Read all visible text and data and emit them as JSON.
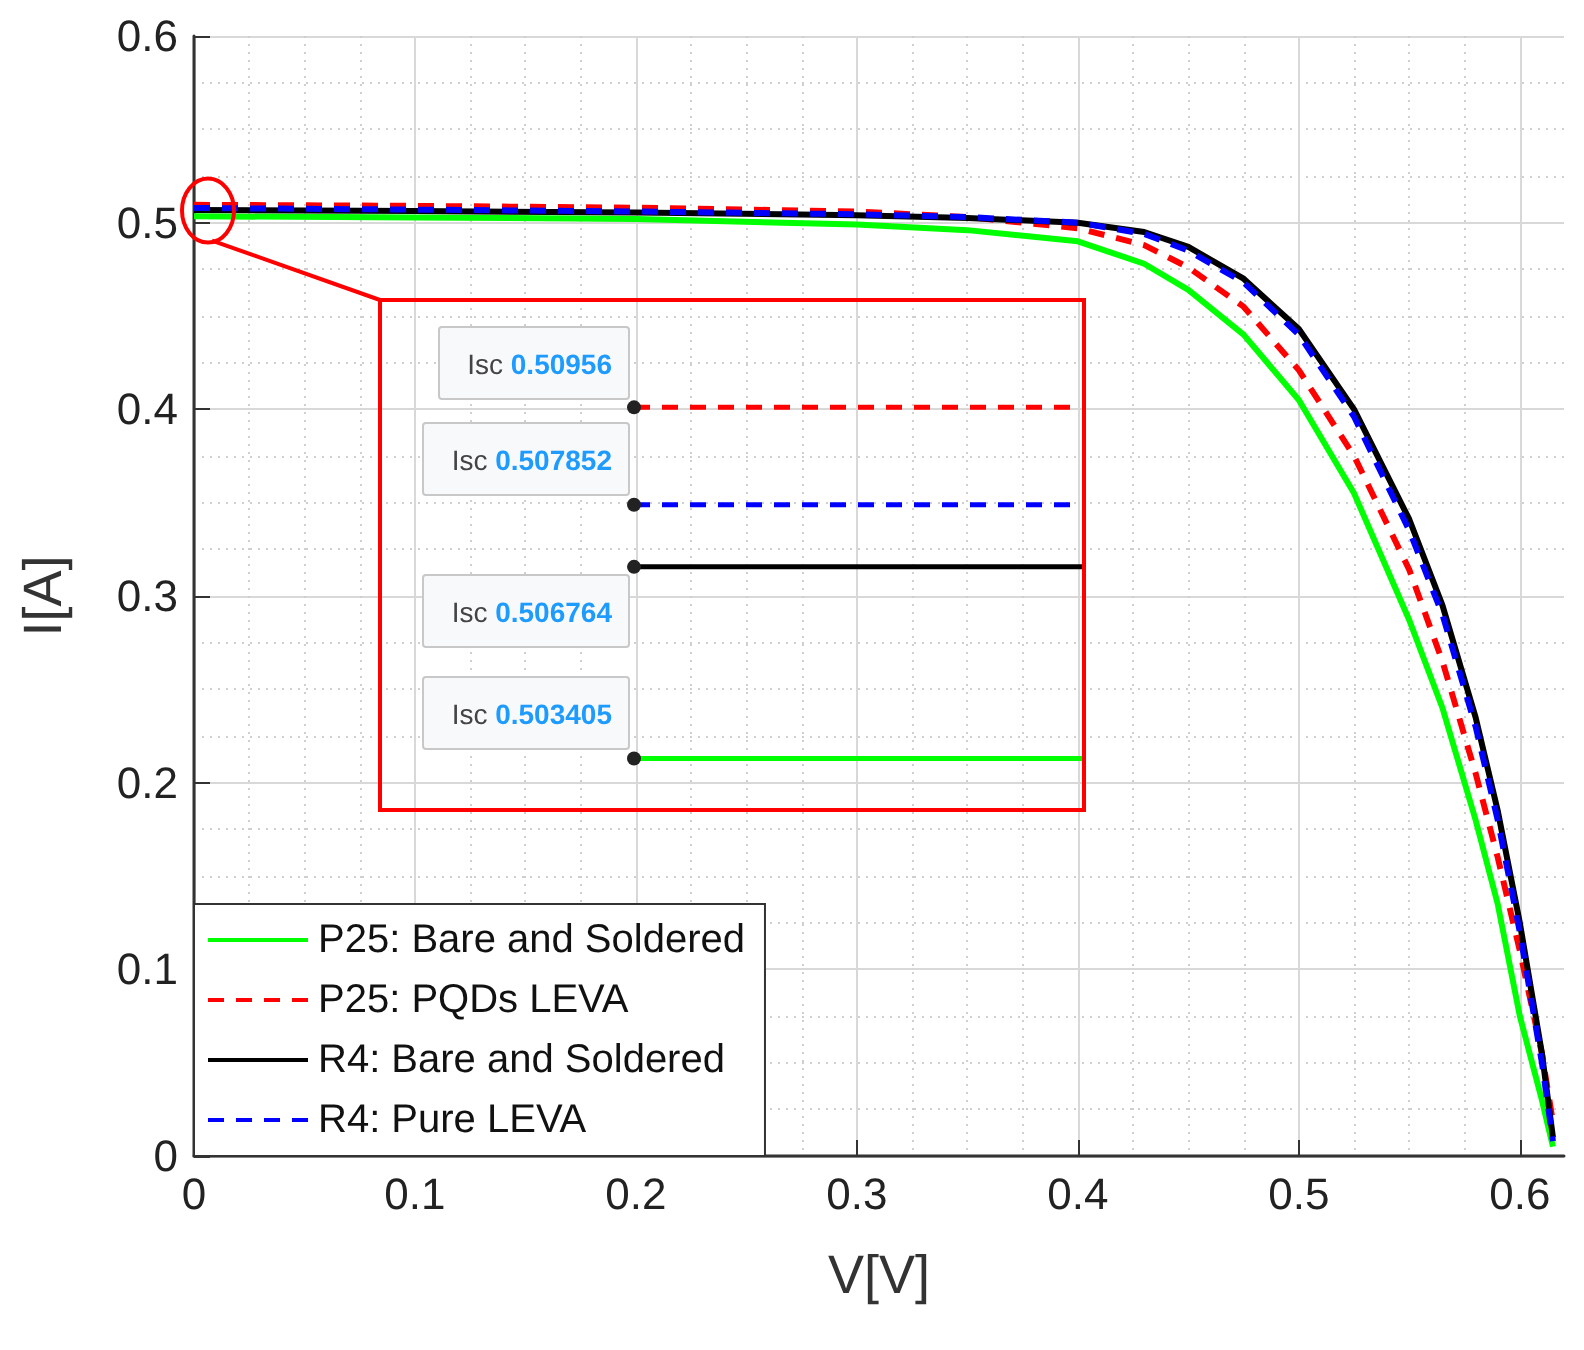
{
  "chart_data": {
    "type": "line",
    "xlabel": "V[V]",
    "ylabel": "I[A]",
    "xlim": [
      0,
      0.62
    ],
    "ylim": [
      0,
      0.6
    ],
    "xticks": [
      0,
      0.1,
      0.2,
      0.3,
      0.4,
      0.5,
      0.6
    ],
    "yticks": [
      0,
      0.1,
      0.2,
      0.3,
      0.4,
      0.5,
      0.6
    ],
    "grid": true,
    "legend": "bottom left",
    "marker": "none",
    "x": [
      0,
      0.1,
      0.2,
      0.3,
      0.35,
      0.4,
      0.43,
      0.45,
      0.475,
      0.5,
      0.525,
      0.55,
      0.565,
      0.58,
      0.59,
      0.6,
      0.61,
      0.615
    ],
    "series": [
      {
        "name": "P25: Bare and Soldered",
        "color": "#00ff00",
        "line_style": "solid",
        "values": [
          0.503405,
          0.5028,
          0.502,
          0.499,
          0.496,
          0.49,
          0.478,
          0.464,
          0.44,
          0.405,
          0.355,
          0.287,
          0.24,
          0.18,
          0.135,
          0.075,
          0.03,
          0.005
        ]
      },
      {
        "name": "P25: PQDs LEVA",
        "color": "#ff0000",
        "line_style": "dashed",
        "values": [
          0.50956,
          0.509,
          0.508,
          0.506,
          0.503,
          0.497,
          0.488,
          0.476,
          0.455,
          0.421,
          0.375,
          0.314,
          0.265,
          0.205,
          0.16,
          0.11,
          0.055,
          0.018
        ]
      },
      {
        "name": "R4: Bare and Soldered",
        "color": "#000000",
        "line_style": "solid",
        "values": [
          0.506764,
          0.5062,
          0.5055,
          0.504,
          0.5025,
          0.5,
          0.495,
          0.487,
          0.47,
          0.443,
          0.4,
          0.341,
          0.295,
          0.235,
          0.185,
          0.125,
          0.055,
          0.01
        ]
      },
      {
        "name": "R4: Pure LEVA",
        "color": "#0000ff",
        "line_style": "dashed",
        "values": [
          0.507852,
          0.507,
          0.506,
          0.5045,
          0.503,
          0.5,
          0.494,
          0.485,
          0.468,
          0.44,
          0.396,
          0.335,
          0.29,
          0.23,
          0.18,
          0.12,
          0.05,
          0.008
        ]
      }
    ],
    "annotations": [
      "Isc 0.50956",
      "Isc 0.507852",
      "Isc 0.506764",
      "Isc 0.503405"
    ]
  }
}
